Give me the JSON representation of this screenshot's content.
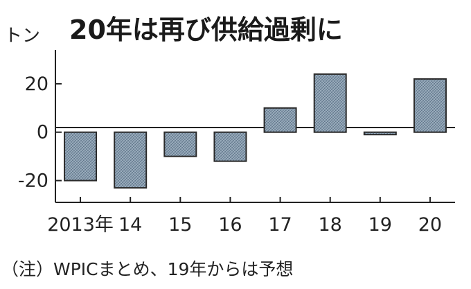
{
  "chart_data": {
    "type": "bar",
    "title": "20年は再び供給過剰に",
    "ylabel": "トン",
    "categories": [
      "2013年",
      "14",
      "15",
      "16",
      "17",
      "18",
      "19",
      "20"
    ],
    "values": [
      -20,
      -23,
      -10,
      -12,
      10,
      24,
      -1,
      22
    ],
    "ylim": [
      -29,
      34
    ],
    "yticks": [
      20,
      0,
      -20
    ],
    "grid": false,
    "bar_color": "#7f95a8",
    "note": "（注）WPICまとめ、19年からは予想"
  }
}
